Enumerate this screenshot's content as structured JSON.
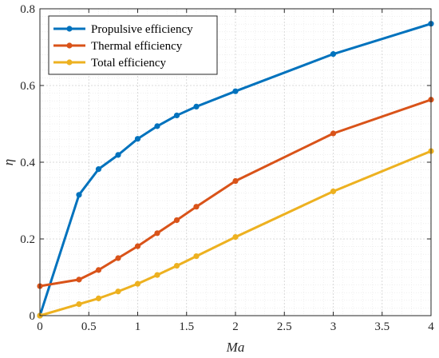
{
  "chart_data": {
    "type": "line",
    "title": "",
    "xlabel": "Ma",
    "ylabel": "η",
    "xlim": [
      0,
      4
    ],
    "ylim": [
      0,
      0.8
    ],
    "x_ticks": [
      "0",
      "0.5",
      "1",
      "1.5",
      "2",
      "2.5",
      "3",
      "3.5",
      "4"
    ],
    "y_ticks": [
      "0",
      "0.2",
      "0.4",
      "0.6",
      "0.8"
    ],
    "grid": true,
    "legend_position": "top-left",
    "x": [
      0,
      0.4,
      0.6,
      0.8,
      1.0,
      1.2,
      1.4,
      1.6,
      2.0,
      3.0,
      4.0
    ],
    "series": [
      {
        "name": "Propulsive efficiency",
        "color": "#0072BD",
        "values": [
          0.0,
          0.315,
          0.382,
          0.419,
          0.461,
          0.494,
          0.522,
          0.545,
          0.585,
          0.682,
          0.761
        ]
      },
      {
        "name": "Thermal efficiency",
        "color": "#D95319",
        "values": [
          0.077,
          0.094,
          0.119,
          0.15,
          0.181,
          0.215,
          0.249,
          0.284,
          0.351,
          0.475,
          0.563
        ]
      },
      {
        "name": "Total efficiency",
        "color": "#EDB120",
        "values": [
          0.0,
          0.03,
          0.045,
          0.063,
          0.083,
          0.106,
          0.13,
          0.155,
          0.205,
          0.324,
          0.429
        ]
      }
    ]
  }
}
